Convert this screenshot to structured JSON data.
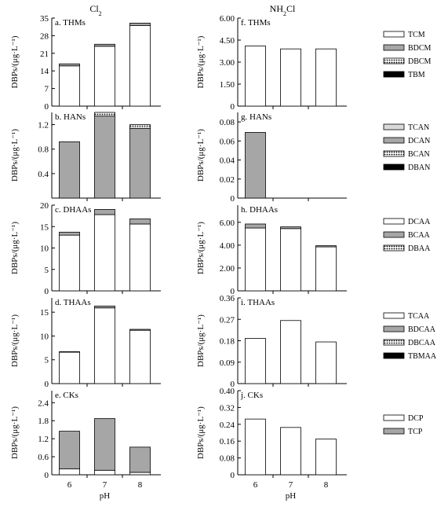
{
  "columns": [
    {
      "title": "Cl2",
      "title_main": "Cl",
      "title_sub": "2"
    },
    {
      "title": "NH2Cl",
      "title_main": "NH",
      "title_sub": "2",
      "title_tail": "Cl"
    }
  ],
  "colors": {
    "white": "#ffffff",
    "light_gray": "#d9d9d9",
    "gray": "#a6a6a6",
    "black": "#000000"
  },
  "chart_data": [
    {
      "id": "a",
      "type": "bar",
      "stacked": true,
      "label": "a. THMs",
      "ylabel": "DBPs/(μg·L⁻¹)",
      "ylim": [
        0,
        35
      ],
      "yticks": [
        "0",
        "7",
        "14",
        "21",
        "28",
        "35"
      ],
      "categories": [
        "6",
        "7",
        "8"
      ],
      "series": [
        {
          "name": "TCM",
          "fill": "white",
          "values": [
            16.0,
            23.8,
            32.0
          ]
        },
        {
          "name": "BDCM",
          "fill": "gray",
          "values": [
            0.8,
            0.8,
            1.0
          ]
        },
        {
          "name": "DBCM",
          "fill": "dots",
          "values": [
            0.0,
            0.0,
            0.0
          ]
        },
        {
          "name": "TBM",
          "fill": "black",
          "values": [
            0.0,
            0.0,
            0.0
          ]
        }
      ]
    },
    {
      "id": "b",
      "type": "bar",
      "stacked": true,
      "label": "b. HANs",
      "ylabel": "DBPs/(μg·L⁻¹)",
      "ylim": [
        0,
        1.4
      ],
      "yticks": [
        "0.4",
        "0.8",
        "1.2"
      ],
      "ytick_values": [
        0.4,
        0.8,
        1.2
      ],
      "categories": [
        "6",
        "7",
        "8"
      ],
      "series": [
        {
          "name": "TCAN",
          "fill": "light_gray",
          "values": [
            0.0,
            0.0,
            0.0
          ]
        },
        {
          "name": "DCAN",
          "fill": "gray",
          "values": [
            0.92,
            1.34,
            1.14
          ]
        },
        {
          "name": "BCAN",
          "fill": "dots",
          "values": [
            0.0,
            0.06,
            0.06
          ]
        },
        {
          "name": "DBAN",
          "fill": "black",
          "values": [
            0.0,
            0.0,
            0.0
          ]
        }
      ]
    },
    {
      "id": "c",
      "type": "bar",
      "stacked": true,
      "label": "c. DHAAs",
      "ylabel": "DBPs/(μg·L⁻¹)",
      "ylim": [
        0,
        20
      ],
      "yticks": [
        "0",
        "5",
        "10",
        "15",
        "20"
      ],
      "categories": [
        "6",
        "7",
        "8"
      ],
      "series": [
        {
          "name": "DCAA",
          "fill": "white",
          "values": [
            13.0,
            17.8,
            15.6
          ]
        },
        {
          "name": "BCAA",
          "fill": "gray",
          "values": [
            0.7,
            1.2,
            1.2
          ]
        },
        {
          "name": "DBAA",
          "fill": "dots",
          "values": [
            0.0,
            0.0,
            0.0
          ]
        }
      ]
    },
    {
      "id": "d",
      "type": "bar",
      "stacked": true,
      "label": "d. THAAs",
      "ylabel": "DBPs/(μg·L⁻¹)",
      "ylim": [
        0,
        18
      ],
      "yticks": [
        "0",
        "5",
        "10",
        "15"
      ],
      "ytick_values": [
        0,
        5,
        10,
        15
      ],
      "categories": [
        "6",
        "7",
        "8"
      ],
      "series": [
        {
          "name": "TCAA",
          "fill": "white",
          "values": [
            6.6,
            15.9,
            11.2
          ]
        },
        {
          "name": "BDCAA",
          "fill": "gray",
          "values": [
            0.1,
            0.4,
            0.2
          ]
        },
        {
          "name": "DBCAA",
          "fill": "dots",
          "values": [
            0.0,
            0.0,
            0.0
          ]
        },
        {
          "name": "TBMAA",
          "fill": "black",
          "values": [
            0.0,
            0.0,
            0.0
          ]
        }
      ]
    },
    {
      "id": "e",
      "type": "bar",
      "stacked": true,
      "label": "e. CKs",
      "ylabel": "DBPs/(μg·L⁻¹)",
      "ylim": [
        0,
        2.8
      ],
      "yticks": [
        "0",
        "0.6",
        "1.2",
        "1.8",
        "2.4"
      ],
      "ytick_values": [
        0,
        0.6,
        1.2,
        1.8,
        2.4
      ],
      "xlabel": "pH",
      "categories": [
        "6",
        "7",
        "8"
      ],
      "series": [
        {
          "name": "DCP",
          "fill": "white",
          "values": [
            0.2,
            0.15,
            0.08
          ]
        },
        {
          "name": "TCP",
          "fill": "gray",
          "values": [
            1.25,
            1.72,
            0.84
          ]
        }
      ]
    },
    {
      "id": "f",
      "type": "bar",
      "stacked": true,
      "label": "f. THMs",
      "ylabel": "DBPs/(μg·L⁻¹)",
      "ylim": [
        0,
        6
      ],
      "yticks": [
        "0",
        "1.50",
        "3.00",
        "4.50",
        "6.00"
      ],
      "ytick_values": [
        0,
        1.5,
        3.0,
        4.5,
        6.0
      ],
      "categories": [
        "6",
        "7",
        "8"
      ],
      "series": [
        {
          "name": "TCM",
          "fill": "white",
          "values": [
            4.1,
            3.9,
            3.9
          ]
        }
      ]
    },
    {
      "id": "g",
      "type": "bar",
      "stacked": true,
      "label": "g. HANs",
      "ylabel": "DBPs/(μg·L⁻¹)",
      "ylim": [
        0,
        0.09
      ],
      "yticks": [
        "0",
        "0.02",
        "0.04",
        "0.06",
        "0.08"
      ],
      "ytick_values": [
        0,
        0.02,
        0.04,
        0.06,
        0.08
      ],
      "categories": [
        "6",
        "7",
        "8"
      ],
      "series": [
        {
          "name": "DCAN",
          "fill": "gray",
          "values": [
            0.069,
            0.0,
            0.0
          ]
        }
      ]
    },
    {
      "id": "h",
      "type": "bar",
      "stacked": true,
      "label": "h. DHAAs",
      "ylabel": "DBPs/(μg·L⁻¹)",
      "ylim": [
        0,
        7.5
      ],
      "yticks": [
        "0",
        "2.00",
        "4.00",
        "6.00"
      ],
      "ytick_values": [
        0,
        2.0,
        4.0,
        6.0
      ],
      "categories": [
        "6",
        "7",
        "8"
      ],
      "series": [
        {
          "name": "DCAA",
          "fill": "white",
          "values": [
            5.5,
            5.45,
            3.85
          ]
        },
        {
          "name": "BCAA",
          "fill": "gray",
          "values": [
            0.35,
            0.15,
            0.1
          ]
        }
      ]
    },
    {
      "id": "i",
      "type": "bar",
      "stacked": true,
      "label": "i. THAAs",
      "ylabel": "DBPs/(μg·L⁻¹)",
      "ylim": [
        0,
        0.36
      ],
      "yticks": [
        "0",
        "0.09",
        "0.18",
        "0.27",
        "0.36"
      ],
      "ytick_values": [
        0,
        0.09,
        0.18,
        0.27,
        0.36
      ],
      "categories": [
        "6",
        "7",
        "8"
      ],
      "series": [
        {
          "name": "TCAA",
          "fill": "white",
          "values": [
            0.19,
            0.265,
            0.175
          ]
        }
      ]
    },
    {
      "id": "j",
      "type": "bar",
      "stacked": true,
      "label": "j. CKs",
      "ylabel": "DBPs/(μg·L⁻¹)",
      "ylim": [
        0,
        0.4
      ],
      "yticks": [
        "0",
        "0.08",
        "0.16",
        "0.24",
        "0.32",
        "0.40"
      ],
      "ytick_values": [
        0,
        0.08,
        0.16,
        0.24,
        0.32,
        0.4
      ],
      "xlabel": "pH",
      "categories": [
        "6",
        "7",
        "8"
      ],
      "series": [
        {
          "name": "DCP",
          "fill": "white",
          "values": [
            0.265,
            0.225,
            0.17
          ]
        }
      ]
    }
  ],
  "legends": [
    {
      "id": "thms",
      "items": [
        {
          "name": "TCM",
          "fill": "white"
        },
        {
          "name": "BDCM",
          "fill": "gray"
        },
        {
          "name": "DBCM",
          "fill": "dots"
        },
        {
          "name": "TBM",
          "fill": "black"
        }
      ]
    },
    {
      "id": "hans",
      "items": [
        {
          "name": "TCAN",
          "fill": "light_gray"
        },
        {
          "name": "DCAN",
          "fill": "gray"
        },
        {
          "name": "BCAN",
          "fill": "dots"
        },
        {
          "name": "DBAN",
          "fill": "black"
        }
      ]
    },
    {
      "id": "dhaas",
      "items": [
        {
          "name": "DCAA",
          "fill": "white"
        },
        {
          "name": "BCAA",
          "fill": "gray"
        },
        {
          "name": "DBAA",
          "fill": "dots"
        }
      ]
    },
    {
      "id": "thaas",
      "items": [
        {
          "name": "TCAA",
          "fill": "white"
        },
        {
          "name": "BDCAA",
          "fill": "gray"
        },
        {
          "name": "DBCAA",
          "fill": "dots"
        },
        {
          "name": "TBMAA",
          "fill": "black"
        }
      ]
    },
    {
      "id": "cks",
      "items": [
        {
          "name": "DCP",
          "fill": "white"
        },
        {
          "name": "TCP",
          "fill": "gray"
        }
      ]
    }
  ]
}
